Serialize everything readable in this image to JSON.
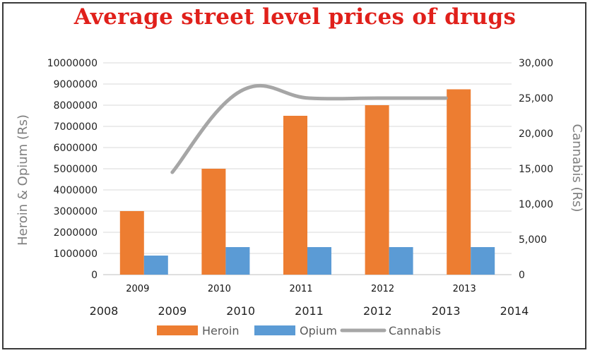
{
  "chart_data": {
    "type": "bar",
    "title": "Average street level prices of drugs",
    "categories": [
      "2009",
      "2010",
      "2011",
      "2012",
      "2013"
    ],
    "series": [
      {
        "name": "Heroin",
        "type": "bar",
        "axis": "left",
        "color": "#ed7d31",
        "values": [
          3000000,
          5000000,
          7500000,
          8000000,
          8750000
        ]
      },
      {
        "name": "Opium",
        "type": "bar",
        "axis": "left",
        "color": "#5b9bd5",
        "values": [
          900000,
          1300000,
          1300000,
          1300000,
          1300000
        ]
      },
      {
        "name": "Cannabis",
        "type": "line",
        "axis": "right",
        "color": "#a6a6a6",
        "values": [
          14500,
          26000,
          25000,
          25000,
          25000
        ]
      }
    ],
    "ylabel": "Heroin & Opium (Rs)",
    "y2label": "Cannabis (Rs)",
    "ylim": [
      0,
      10000000
    ],
    "y2lim": [
      0,
      30000
    ],
    "yticks": [
      "0",
      "1000000",
      "2000000",
      "3000000",
      "4000000",
      "5000000",
      "6000000",
      "7000000",
      "8000000",
      "9000000",
      "10000000"
    ],
    "y2ticks": [
      "0",
      "5,000",
      "10,000",
      "15,000",
      "20,000",
      "25,000",
      "30,000"
    ],
    "secondary_x_ticks": [
      "2008",
      "2009",
      "2010",
      "2011",
      "2012",
      "2013",
      "2014"
    ],
    "grid": true,
    "legend": "bottom"
  }
}
